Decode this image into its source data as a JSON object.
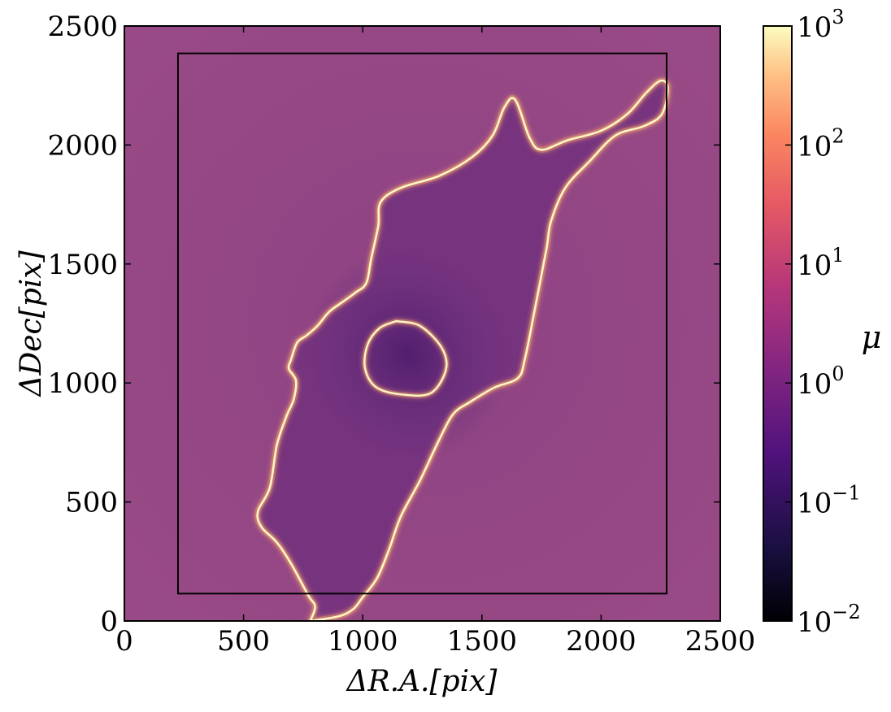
{
  "chart_data": {
    "type": "heatmap",
    "title": "",
    "xlabel": "ΔR.A.[pix]",
    "ylabel": "ΔDec[pix]",
    "xlim": [
      0,
      2500
    ],
    "ylim": [
      0,
      2500
    ],
    "x_ticks": [
      0,
      500,
      1000,
      1500,
      2000,
      2500
    ],
    "y_ticks": [
      0,
      500,
      1000,
      1500,
      2000,
      2500
    ],
    "colorbar": {
      "label": "μ",
      "scale": "log",
      "range": [
        0.01,
        1000
      ],
      "ticks": [
        {
          "value": 0.01,
          "base": "10",
          "exp": "−2"
        },
        {
          "value": 0.1,
          "base": "10",
          "exp": "−1"
        },
        {
          "value": 1,
          "base": "10",
          "exp": "0"
        },
        {
          "value": 10,
          "base": "10",
          "exp": "1"
        },
        {
          "value": 100,
          "base": "10",
          "exp": "2"
        },
        {
          "value": 1000,
          "base": "10",
          "exp": "3"
        }
      ],
      "colormap": "magma"
    },
    "background_color": "#8a3e82",
    "inner_box": {
      "x0": 225,
      "x1": 2275,
      "y0": 115,
      "y1": 2385
    },
    "critical_curve_outer": [
      [
        780,
        0
      ],
      [
        800,
        60
      ],
      [
        770,
        110
      ],
      [
        700,
        240
      ],
      [
        640,
        330
      ],
      [
        575,
        395
      ],
      [
        560,
        460
      ],
      [
        610,
        560
      ],
      [
        640,
        740
      ],
      [
        680,
        860
      ],
      [
        710,
        930
      ],
      [
        720,
        1010
      ],
      [
        690,
        1060
      ],
      [
        700,
        1100
      ],
      [
        725,
        1170
      ],
      [
        765,
        1200
      ],
      [
        810,
        1240
      ],
      [
        860,
        1300
      ],
      [
        915,
        1340
      ],
      [
        970,
        1380
      ],
      [
        1015,
        1420
      ],
      [
        1035,
        1520
      ],
      [
        1065,
        1660
      ],
      [
        1075,
        1760
      ],
      [
        1160,
        1820
      ],
      [
        1320,
        1870
      ],
      [
        1460,
        1950
      ],
      [
        1545,
        2040
      ],
      [
        1595,
        2160
      ],
      [
        1640,
        2190
      ],
      [
        1700,
        2030
      ],
      [
        1750,
        1980
      ],
      [
        1860,
        2020
      ],
      [
        2000,
        2060
      ],
      [
        2110,
        2130
      ],
      [
        2190,
        2220
      ],
      [
        2250,
        2270
      ],
      [
        2280,
        2240
      ],
      [
        2255,
        2130
      ],
      [
        2180,
        2080
      ],
      [
        2060,
        2040
      ],
      [
        1950,
        1930
      ],
      [
        1850,
        1820
      ],
      [
        1790,
        1680
      ],
      [
        1770,
        1560
      ],
      [
        1720,
        1300
      ],
      [
        1680,
        1100
      ],
      [
        1650,
        1020
      ],
      [
        1550,
        980
      ],
      [
        1450,
        920
      ],
      [
        1380,
        870
      ],
      [
        1320,
        760
      ],
      [
        1240,
        590
      ],
      [
        1160,
        440
      ],
      [
        1110,
        300
      ],
      [
        1060,
        180
      ],
      [
        1000,
        100
      ],
      [
        960,
        50
      ],
      [
        900,
        20
      ],
      [
        780,
        0
      ]
    ],
    "critical_curve_inner": [
      [
        1140,
        1260
      ],
      [
        1240,
        1240
      ],
      [
        1330,
        1150
      ],
      [
        1350,
        1060
      ],
      [
        1290,
        960
      ],
      [
        1180,
        950
      ],
      [
        1060,
        980
      ],
      [
        1010,
        1060
      ],
      [
        1020,
        1160
      ],
      [
        1070,
        1230
      ],
      [
        1140,
        1260
      ]
    ],
    "inner_fill": {
      "cx": 1190,
      "cy": 1120,
      "rx": 420,
      "ry": 460,
      "rotation_deg": -35
    }
  }
}
